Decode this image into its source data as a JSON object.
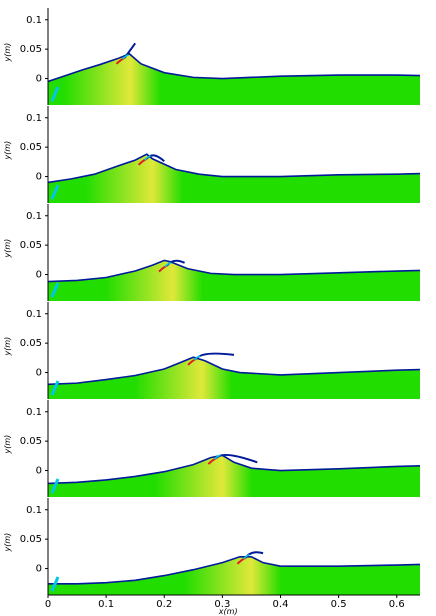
{
  "chart_data": {
    "type": "area",
    "panel_count": 6,
    "ylabel": "y(m)",
    "xlabel": "x(m)",
    "yticks": [
      "0.1",
      "0.05",
      "0"
    ],
    "xticks": [
      "0",
      "0.1",
      "0.2",
      "0.3",
      "0.4",
      "0.5",
      "0.6"
    ],
    "xlim": [
      0,
      0.64
    ],
    "ylim": [
      -0.045,
      0.12
    ],
    "colors": {
      "fill": "#22dd00",
      "highlight": "#e0e83a",
      "surface": "#001a99",
      "splash_red": "#e02020",
      "splash_cyan": "#00c8e8"
    },
    "panels": [
      {
        "x": [
          0.0,
          0.03,
          0.06,
          0.09,
          0.12,
          0.14,
          0.16,
          0.2,
          0.25,
          0.3,
          0.4,
          0.5,
          0.6,
          0.64
        ],
        "y": [
          -0.005,
          0.005,
          0.015,
          0.024,
          0.034,
          0.042,
          0.025,
          0.01,
          0.002,
          0.0,
          0.004,
          0.006,
          0.006,
          0.005
        ]
      },
      {
        "x": [
          0.0,
          0.04,
          0.08,
          0.12,
          0.15,
          0.17,
          0.18,
          0.22,
          0.26,
          0.3,
          0.4,
          0.5,
          0.6,
          0.64
        ],
        "y": [
          -0.01,
          -0.004,
          0.004,
          0.018,
          0.028,
          0.038,
          0.03,
          0.012,
          0.004,
          0.0,
          0.0,
          0.003,
          0.004,
          0.005
        ]
      },
      {
        "x": [
          0.0,
          0.05,
          0.1,
          0.15,
          0.18,
          0.2,
          0.21,
          0.24,
          0.28,
          0.32,
          0.4,
          0.5,
          0.6,
          0.64
        ],
        "y": [
          -0.012,
          -0.01,
          -0.005,
          0.006,
          0.016,
          0.024,
          0.022,
          0.01,
          0.002,
          0.0,
          0.0,
          0.003,
          0.006,
          0.007
        ]
      },
      {
        "x": [
          0.0,
          0.05,
          0.1,
          0.15,
          0.2,
          0.23,
          0.25,
          0.27,
          0.3,
          0.33,
          0.4,
          0.5,
          0.6,
          0.64
        ],
        "y": [
          -0.02,
          -0.018,
          -0.012,
          -0.005,
          0.006,
          0.018,
          0.026,
          0.02,
          0.006,
          0.0,
          -0.004,
          0.0,
          0.004,
          0.005
        ]
      },
      {
        "x": [
          0.0,
          0.05,
          0.1,
          0.15,
          0.2,
          0.25,
          0.28,
          0.3,
          0.32,
          0.35,
          0.4,
          0.5,
          0.6,
          0.64
        ],
        "y": [
          -0.022,
          -0.02,
          -0.016,
          -0.01,
          -0.002,
          0.01,
          0.022,
          0.026,
          0.014,
          0.004,
          0.0,
          0.003,
          0.007,
          0.008
        ]
      },
      {
        "x": [
          0.0,
          0.05,
          0.1,
          0.15,
          0.2,
          0.25,
          0.3,
          0.33,
          0.35,
          0.37,
          0.4,
          0.5,
          0.6,
          0.64
        ],
        "y": [
          -0.026,
          -0.026,
          -0.024,
          -0.02,
          -0.012,
          -0.002,
          0.01,
          0.02,
          0.02,
          0.01,
          0.004,
          0.004,
          0.006,
          0.007
        ]
      }
    ],
    "crest": [
      {
        "x": 0.142,
        "y": 0.042,
        "tip_x": 0.15,
        "tip_y": 0.06
      },
      {
        "x": 0.18,
        "y": 0.037,
        "tip_x": 0.2,
        "tip_y": 0.026
      },
      {
        "x": 0.215,
        "y": 0.022,
        "tip_x": 0.235,
        "tip_y": 0.02
      },
      {
        "x": 0.265,
        "y": 0.03,
        "tip_x": 0.32,
        "tip_y": 0.03
      },
      {
        "x": 0.3,
        "y": 0.028,
        "tip_x": 0.36,
        "tip_y": 0.014
      },
      {
        "x": 0.35,
        "y": 0.025,
        "tip_x": 0.37,
        "tip_y": 0.026
      }
    ]
  }
}
